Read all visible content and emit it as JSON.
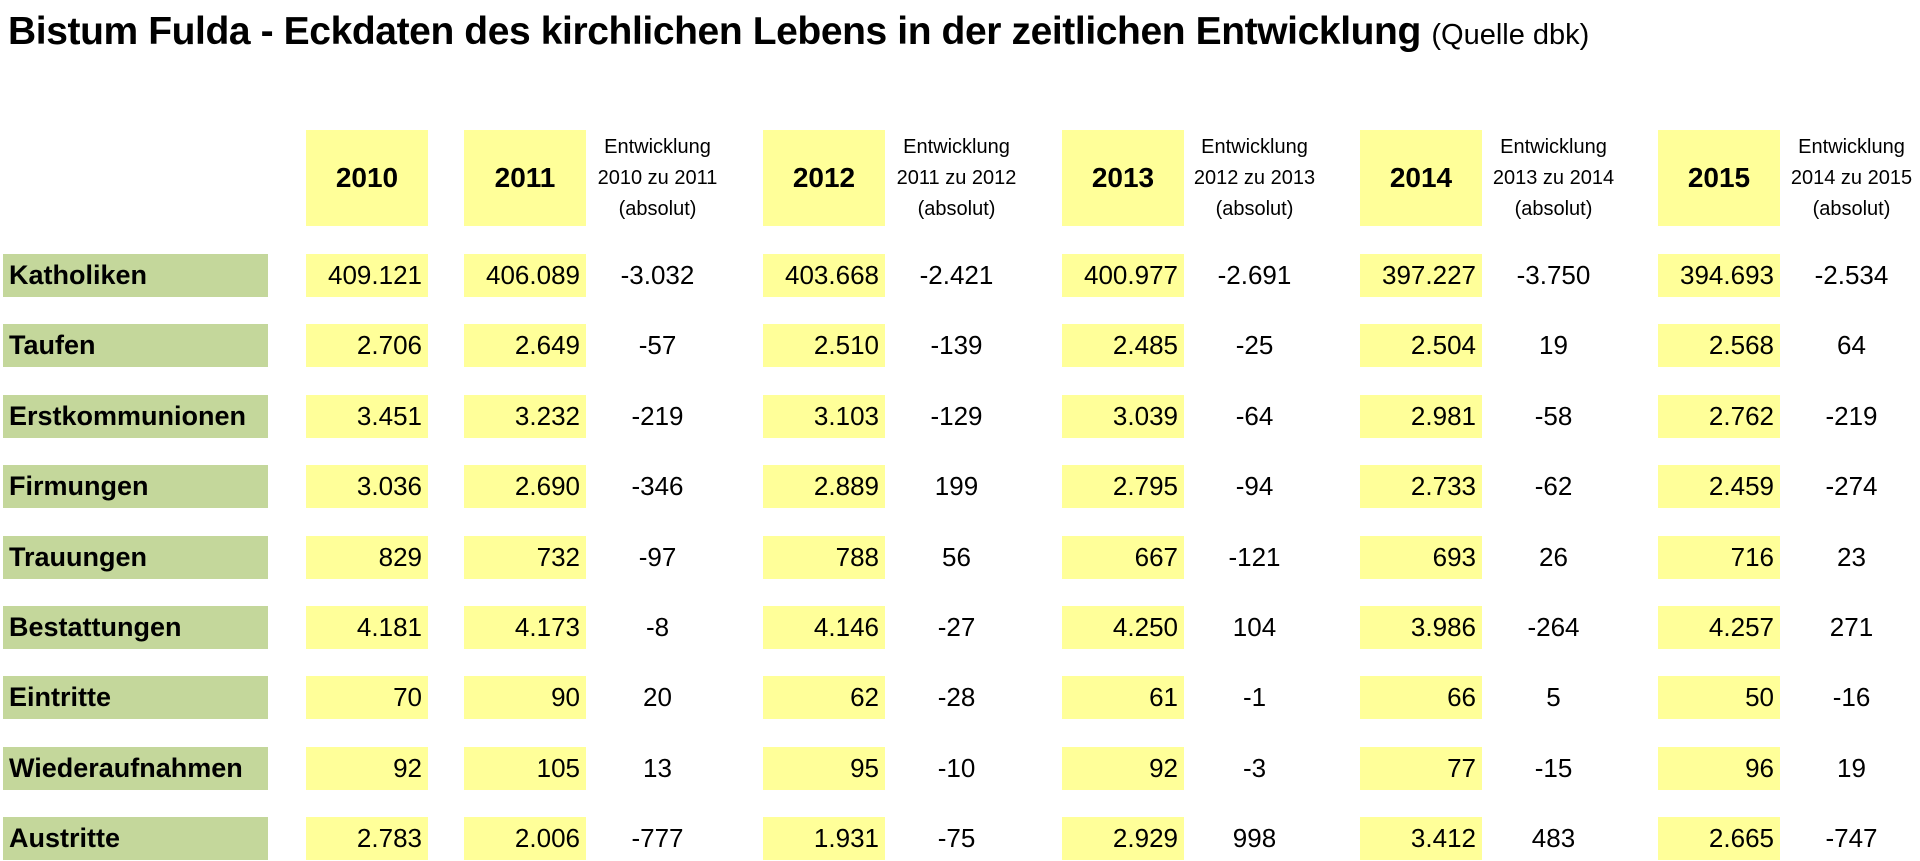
{
  "title": "Bistum Fulda - Eckdaten des kirchlichen Lebens in der zeitlichen Entwicklung",
  "source": "(Quelle dbk)",
  "chart_data": {
    "type": "table",
    "years": [
      "2010",
      "2011",
      "2012",
      "2013",
      "2014",
      "2015"
    ],
    "development_headers": [
      [
        "Entwicklung",
        "2010 zu 2011",
        "(absolut)"
      ],
      [
        "Entwicklung",
        "2011 zu 2012",
        "(absolut)"
      ],
      [
        "Entwicklung",
        "2012 zu 2013",
        "(absolut)"
      ],
      [
        "Entwicklung",
        "2013 zu 2014",
        "(absolut)"
      ],
      [
        "Entwicklung",
        "2014 zu 2015",
        "(absolut)"
      ]
    ],
    "rows": [
      {
        "label": "Katholiken",
        "values": [
          "409.121",
          "406.089",
          "403.668",
          "400.977",
          "397.227",
          "394.693"
        ],
        "changes": [
          "-3.032",
          "-2.421",
          "-2.691",
          "-3.750",
          "-2.534"
        ]
      },
      {
        "label": "Taufen",
        "values": [
          "2.706",
          "2.649",
          "2.510",
          "2.485",
          "2.504",
          "2.568"
        ],
        "changes": [
          "-57",
          "-139",
          "-25",
          "19",
          "64"
        ]
      },
      {
        "label": "Erstkommunionen",
        "values": [
          "3.451",
          "3.232",
          "3.103",
          "3.039",
          "2.981",
          "2.762"
        ],
        "changes": [
          "-219",
          "-129",
          "-64",
          "-58",
          "-219"
        ]
      },
      {
        "label": "Firmungen",
        "values": [
          "3.036",
          "2.690",
          "2.889",
          "2.795",
          "2.733",
          "2.459"
        ],
        "changes": [
          "-346",
          "199",
          "-94",
          "-62",
          "-274"
        ]
      },
      {
        "label": "Trauungen",
        "values": [
          "829",
          "732",
          "788",
          "667",
          "693",
          "716"
        ],
        "changes": [
          "-97",
          "56",
          "-121",
          "26",
          "23"
        ]
      },
      {
        "label": "Bestattungen",
        "values": [
          "4.181",
          "4.173",
          "4.146",
          "4.250",
          "3.986",
          "4.257"
        ],
        "changes": [
          "-8",
          "-27",
          "104",
          "-264",
          "271"
        ]
      },
      {
        "label": "Eintritte",
        "values": [
          "70",
          "90",
          "62",
          "61",
          "66",
          "50"
        ],
        "changes": [
          "20",
          "-28",
          "-1",
          "5",
          "-16"
        ]
      },
      {
        "label": "Wiederaufnahmen",
        "values": [
          "92",
          "105",
          "95",
          "92",
          "77",
          "96"
        ],
        "changes": [
          "13",
          "-10",
          "-3",
          "-15",
          "19"
        ]
      },
      {
        "label": "Austritte",
        "values": [
          "2.783",
          "2.006",
          "1.931",
          "2.929",
          "3.412",
          "2.665"
        ],
        "changes": [
          "-777",
          "-75",
          "998",
          "483",
          "-747"
        ]
      }
    ],
    "colors": {
      "year_fill": "#ffff99",
      "label_fill": "#c4d79b"
    }
  }
}
